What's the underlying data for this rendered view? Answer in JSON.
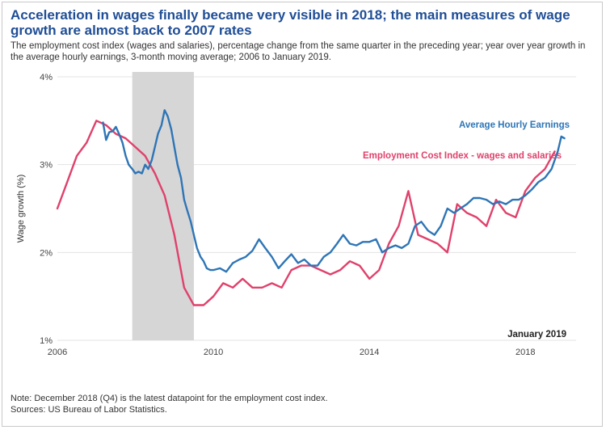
{
  "title": "Acceleration in wages finally became very visible in 2018; the main measures of wage growth are almost back to 2007 rates",
  "subtitle": "The employment cost index (wages and salaries), percentage change from the same quarter in the preceding year; year over year growth in the average hourly earnings, 3-month moving average; 2006 to January 2019.",
  "note": "Note: December 2018 (Q4) is the latest datapoint for the employment cost index.",
  "sources": "Sources: US Bureau of Labor Statistics.",
  "chart_data": {
    "type": "line",
    "ylabel": "Wage growth (%)",
    "xlabel": "",
    "xlim": [
      2006,
      2019.3
    ],
    "ylim": [
      1,
      4
    ],
    "x_ticks": [
      {
        "value": 2006,
        "label": "2006"
      },
      {
        "value": 2010,
        "label": "2010"
      },
      {
        "value": 2014,
        "label": "2014"
      },
      {
        "value": 2018,
        "label": "2018"
      }
    ],
    "y_ticks": [
      {
        "value": 1,
        "label": "1%"
      },
      {
        "value": 2,
        "label": "2%"
      },
      {
        "value": 3,
        "label": "3%"
      },
      {
        "value": 4,
        "label": "4%"
      }
    ],
    "grid": "horizontal",
    "recession_shade": {
      "start": 2007.92,
      "end": 2009.5
    },
    "annotation": "January 2019",
    "series": [
      {
        "name": "Average Hourly Earnings",
        "color": "#2e75b6",
        "x": [
          2007.17,
          2007.25,
          2007.33,
          2007.42,
          2007.5,
          2007.58,
          2007.67,
          2007.75,
          2007.83,
          2007.92,
          2008.0,
          2008.08,
          2008.17,
          2008.25,
          2008.33,
          2008.42,
          2008.5,
          2008.58,
          2008.67,
          2008.75,
          2008.83,
          2008.92,
          2009.0,
          2009.08,
          2009.17,
          2009.25,
          2009.33,
          2009.42,
          2009.5,
          2009.58,
          2009.67,
          2009.75,
          2009.83,
          2009.92,
          2010.0,
          2010.17,
          2010.33,
          2010.5,
          2010.67,
          2010.83,
          2011.0,
          2011.17,
          2011.33,
          2011.5,
          2011.67,
          2011.83,
          2012.0,
          2012.17,
          2012.33,
          2012.5,
          2012.67,
          2012.83,
          2013.0,
          2013.17,
          2013.33,
          2013.5,
          2013.67,
          2013.83,
          2014.0,
          2014.17,
          2014.33,
          2014.5,
          2014.67,
          2014.83,
          2015.0,
          2015.17,
          2015.33,
          2015.5,
          2015.67,
          2015.83,
          2016.0,
          2016.17,
          2016.33,
          2016.5,
          2016.67,
          2016.83,
          2017.0,
          2017.17,
          2017.33,
          2017.5,
          2017.67,
          2017.83,
          2018.0,
          2018.17,
          2018.33,
          2018.5,
          2018.67,
          2018.83,
          2018.92,
          2019.0
        ],
        "values": [
          3.48,
          3.28,
          3.37,
          3.38,
          3.43,
          3.35,
          3.25,
          3.1,
          3.0,
          2.95,
          2.9,
          2.92,
          2.9,
          3.0,
          2.95,
          3.05,
          3.2,
          3.35,
          3.45,
          3.62,
          3.55,
          3.4,
          3.2,
          3.0,
          2.85,
          2.6,
          2.48,
          2.35,
          2.2,
          2.05,
          1.95,
          1.9,
          1.82,
          1.8,
          1.8,
          1.82,
          1.78,
          1.88,
          1.92,
          1.95,
          2.02,
          2.15,
          2.05,
          1.95,
          1.82,
          1.9,
          1.98,
          1.88,
          1.92,
          1.85,
          1.85,
          1.95,
          2.0,
          2.1,
          2.2,
          2.1,
          2.08,
          2.12,
          2.12,
          2.15,
          2.0,
          2.05,
          2.08,
          2.05,
          2.1,
          2.3,
          2.35,
          2.25,
          2.2,
          2.3,
          2.5,
          2.45,
          2.5,
          2.55,
          2.62,
          2.62,
          2.6,
          2.55,
          2.58,
          2.55,
          2.6,
          2.6,
          2.65,
          2.72,
          2.8,
          2.85,
          2.95,
          3.15,
          3.32,
          3.3
        ]
      },
      {
        "name": "Employment Cost Index - wages and salaries",
        "color": "#e0416b",
        "x": [
          2006.0,
          2006.25,
          2006.5,
          2006.75,
          2007.0,
          2007.25,
          2007.5,
          2007.75,
          2008.0,
          2008.25,
          2008.5,
          2008.75,
          2009.0,
          2009.25,
          2009.5,
          2009.75,
          2010.0,
          2010.25,
          2010.5,
          2010.75,
          2011.0,
          2011.25,
          2011.5,
          2011.75,
          2012.0,
          2012.25,
          2012.5,
          2012.75,
          2013.0,
          2013.25,
          2013.5,
          2013.75,
          2014.0,
          2014.25,
          2014.5,
          2014.75,
          2015.0,
          2015.25,
          2015.5,
          2015.75,
          2016.0,
          2016.25,
          2016.5,
          2016.75,
          2017.0,
          2017.25,
          2017.5,
          2017.75,
          2018.0,
          2018.25,
          2018.5,
          2018.75
        ],
        "values": [
          2.5,
          2.8,
          3.1,
          3.25,
          3.5,
          3.45,
          3.35,
          3.3,
          3.2,
          3.1,
          2.9,
          2.65,
          2.2,
          1.6,
          1.4,
          1.4,
          1.5,
          1.65,
          1.6,
          1.7,
          1.6,
          1.6,
          1.65,
          1.6,
          1.8,
          1.85,
          1.85,
          1.8,
          1.75,
          1.8,
          1.9,
          1.85,
          1.7,
          1.8,
          2.1,
          2.3,
          2.7,
          2.2,
          2.15,
          2.1,
          2.0,
          2.55,
          2.45,
          2.4,
          2.3,
          2.6,
          2.45,
          2.4,
          2.7,
          2.85,
          2.95,
          3.15
        ]
      }
    ]
  }
}
